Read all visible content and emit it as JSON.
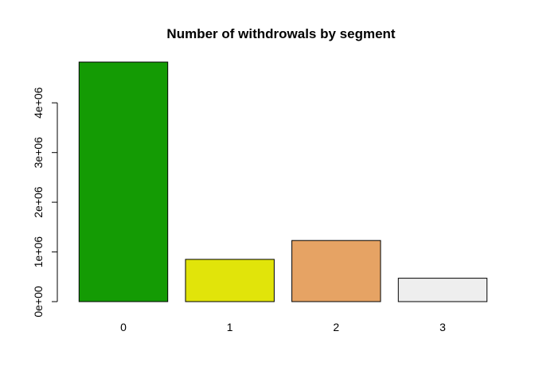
{
  "chart_data": {
    "type": "bar",
    "title": "Number of withdrowals by segment",
    "xlabel": "",
    "ylabel": "",
    "categories": [
      "0",
      "1",
      "2",
      "3"
    ],
    "values": [
      4820000,
      850000,
      1230000,
      470000
    ],
    "colors": [
      "#149B04",
      "#E1E40A",
      "#E6A364",
      "#EEEEEE"
    ],
    "ylim": [
      0,
      4820000
    ],
    "yticks": [
      0,
      1000000,
      2000000,
      3000000,
      4000000
    ],
    "ytick_labels": [
      "0e+00",
      "1e+06",
      "2e+06",
      "3e+06",
      "4e+06"
    ],
    "grid": false,
    "legend": "none"
  }
}
